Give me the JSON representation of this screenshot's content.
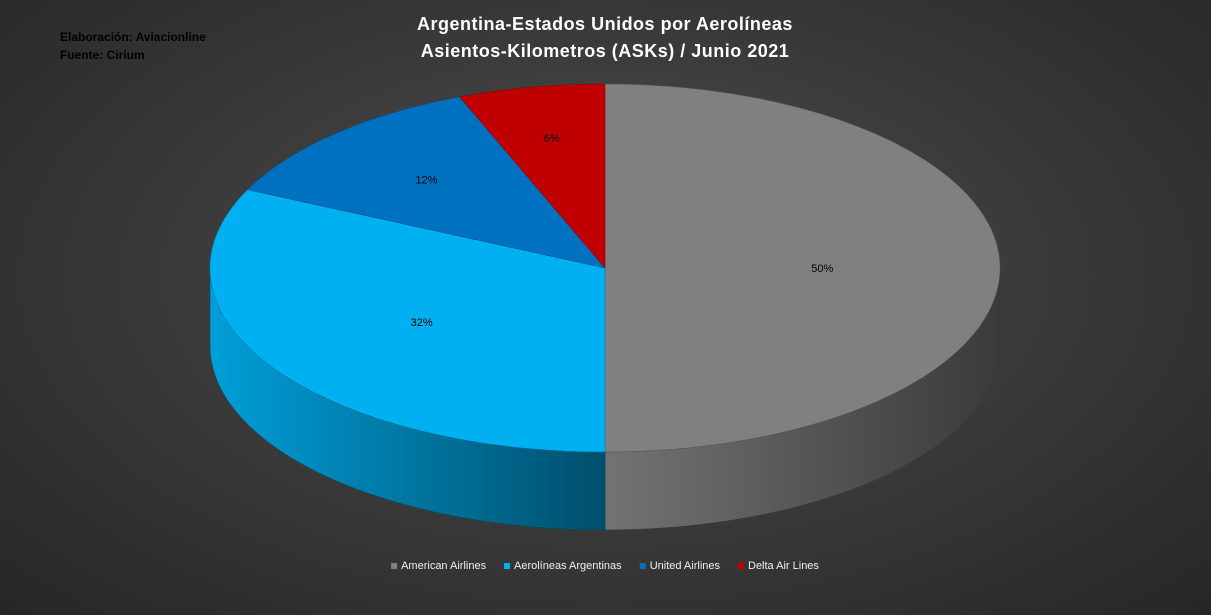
{
  "notes": {
    "line1": "Elaboración: Aviacionline",
    "line2": "Fuente: Cirium"
  },
  "chart_data": {
    "type": "pie",
    "title": "Argentina-Estados Unidos por Aerolíneas",
    "subtitle": "Asientos-Kilometros (ASKs) / Junio 2021",
    "style": "3d",
    "legend_position": "bottom",
    "series": [
      {
        "name": "American Airlines",
        "value": 50,
        "label": "50%",
        "color": "#808080"
      },
      {
        "name": "Aerolíneas Argentinas",
        "value": 32,
        "label": "32%",
        "color": "#00b0f0"
      },
      {
        "name": "United Airlines",
        "value": 12,
        "label": "12%",
        "color": "#0070c0"
      },
      {
        "name": "Delta Air Lines",
        "value": 6,
        "label": "6%",
        "color": "#c00000"
      }
    ]
  }
}
